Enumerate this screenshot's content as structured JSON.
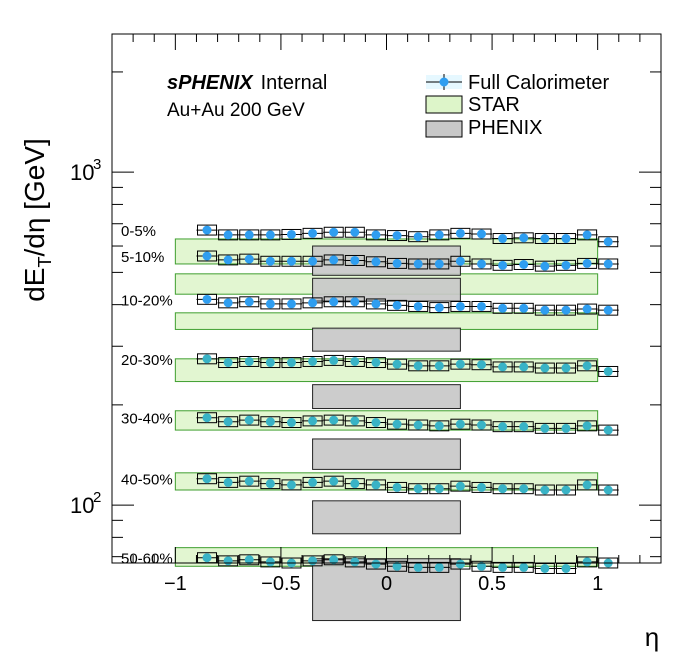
{
  "chart_data": {
    "type": "scatter",
    "title": "",
    "xlabel": "η",
    "ylabel_main": "dE",
    "ylabel_sub": "T",
    "ylabel_rest": "/dη [GeV]",
    "xlim": [
      -1.3,
      1.3
    ],
    "ylim": [
      67,
      2600
    ],
    "y_scale": "log",
    "x_ticks": [
      {
        "value": -1,
        "label": "−1"
      },
      {
        "value": -0.5,
        "label": "−0.5"
      },
      {
        "value": 0,
        "label": "0"
      },
      {
        "value": 0.5,
        "label": "0.5"
      },
      {
        "value": 1,
        "label": "1"
      }
    ],
    "y_ticks": [
      {
        "value": 100,
        "label": "10",
        "exp": "2"
      },
      {
        "value": 1000,
        "label": "10",
        "exp": "3"
      }
    ],
    "grid": false,
    "annotation": {
      "brand": "sPHENIX",
      "status": "Internal",
      "system": "Au+Au 200 GeV"
    },
    "legend_position": "top-right",
    "legend": [
      {
        "label": "Full Calorimeter",
        "kind": "marker"
      },
      {
        "label": "STAR",
        "kind": "box",
        "color": "#ddf5c9"
      },
      {
        "label": "PHENIX",
        "kind": "box",
        "color": "#c8c8c8"
      }
    ],
    "colors": {
      "marker": "#2f9ef0",
      "marker_light": "#39b3c6",
      "star": "#ddf5c9",
      "phenix": "#c8c8c8",
      "star_edge": "#3f9f2f"
    },
    "eta_bins": [
      -0.85,
      -0.75,
      -0.65,
      -0.55,
      -0.45,
      -0.35,
      -0.25,
      -0.15,
      -0.05,
      0.05,
      0.15,
      0.25,
      0.35,
      0.45,
      0.55,
      0.65,
      0.75,
      0.85,
      0.95,
      1.05
    ],
    "centrality": [
      {
        "label": "0-5%",
        "full": [
          670,
          648,
          648,
          648,
          650,
          655,
          660,
          660,
          648,
          645,
          640,
          648,
          655,
          652,
          632,
          635,
          632,
          632,
          648,
          618
        ],
        "star": [
          530,
          630
        ],
        "phenix": [
          490,
          600
        ]
      },
      {
        "label": "5-10%",
        "full": [
          560,
          545,
          548,
          540,
          540,
          540,
          545,
          543,
          538,
          532,
          530,
          530,
          540,
          530,
          525,
          528,
          522,
          525,
          532,
          530
        ],
        "star": [
          430,
          495
        ],
        "phenix": [
          410,
          480
        ]
      },
      {
        "label": "10-20%",
        "full": [
          415,
          405,
          408,
          402,
          402,
          405,
          408,
          408,
          402,
          398,
          395,
          392,
          395,
          395,
          390,
          390,
          385,
          385,
          388,
          385
        ],
        "star": [
          337,
          378
        ],
        "phenix": [
          290,
          340
        ]
      },
      {
        "label": "20-30%",
        "full": [
          275,
          268,
          270,
          268,
          268,
          270,
          272,
          270,
          268,
          265,
          262,
          262,
          265,
          264,
          260,
          260,
          258,
          258,
          262,
          252
        ],
        "star": [
          235,
          275
        ],
        "phenix": [
          195,
          230
        ]
      },
      {
        "label": "30-40%",
        "full": [
          183,
          178,
          180,
          178,
          177,
          179,
          180,
          179,
          177,
          175,
          174,
          173,
          175,
          174,
          172,
          172,
          170,
          170,
          173,
          168
        ],
        "star": [
          168,
          192
        ],
        "phenix": [
          128,
          158
        ]
      },
      {
        "label": "40-50%",
        "full": [
          120,
          117,
          118,
          116,
          115,
          117,
          118,
          116,
          115,
          113,
          112,
          112,
          114,
          113,
          112,
          112,
          111,
          111,
          115,
          111
        ],
        "star": [
          111,
          125
        ],
        "phenix": [
          82,
          103
        ]
      },
      {
        "label": "50-60%",
        "full": [
          69.5,
          68,
          68.5,
          67.5,
          67,
          68,
          68.5,
          67.5,
          66.5,
          65.5,
          65,
          65,
          66.5,
          65.5,
          65,
          65,
          64.5,
          64.5,
          67.5,
          67
        ],
        "star": [
          65.5,
          74.5
        ],
        "phenix": [
          45,
          69
        ]
      }
    ]
  }
}
